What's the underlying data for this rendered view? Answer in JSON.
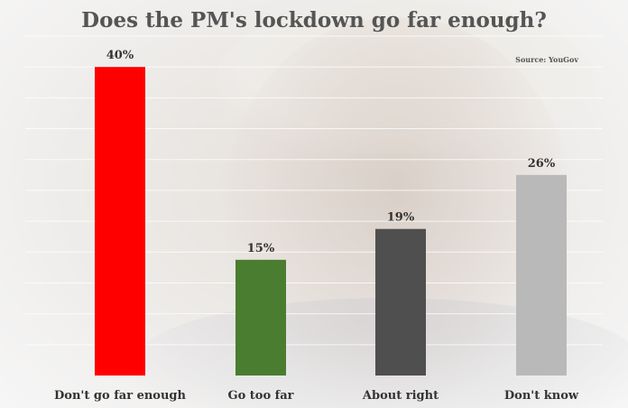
{
  "chart_data": {
    "type": "bar",
    "title": "Does the PM's lockdown go far enough?",
    "source": "Source: YouGov",
    "categories": [
      "Don't go far enough",
      "Go too far",
      "About right",
      "Don't know"
    ],
    "values": [
      40,
      15,
      19,
      26
    ],
    "value_labels": [
      "40%",
      "15%",
      "19%",
      "26%"
    ],
    "colors": [
      "#ff0000",
      "#4a7d2f",
      "#4f4f4f",
      "#b9b9b9"
    ],
    "ylim": [
      0,
      44
    ],
    "grid": true,
    "grid_step": 4,
    "xlabel": "",
    "ylabel": ""
  }
}
